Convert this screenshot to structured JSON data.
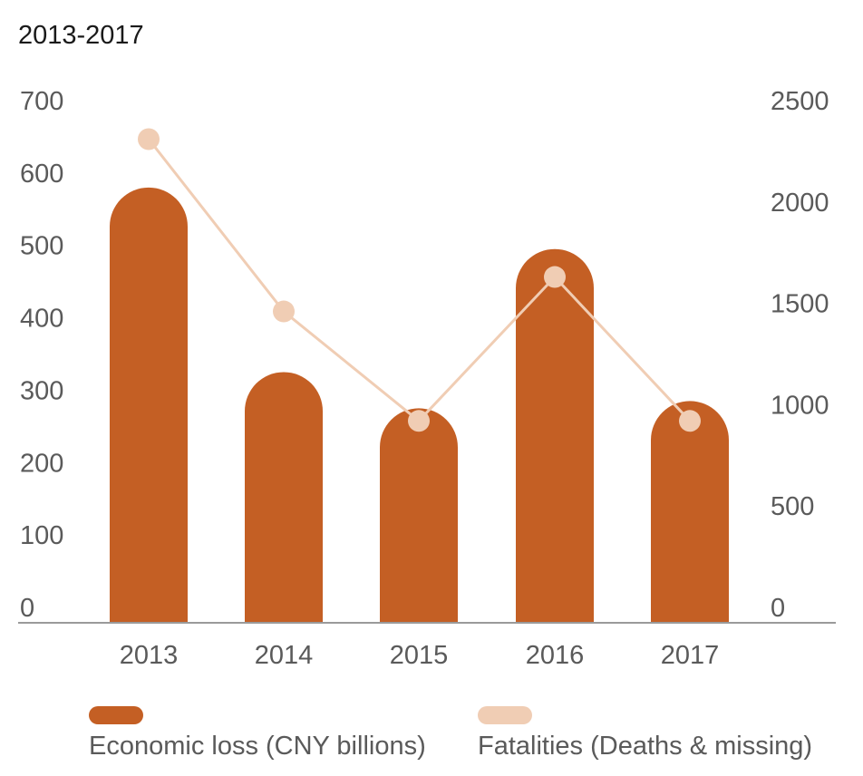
{
  "chart_data": {
    "type": "bar",
    "title": "2013-2017",
    "categories": [
      "2013",
      "2014",
      "2015",
      "2016",
      "2017"
    ],
    "series": [
      {
        "name": "Economic loss (CNY billions)",
        "type": "bar",
        "axis": "left",
        "color": "#c45f24",
        "values": [
          580,
          325,
          275,
          495,
          285
        ]
      },
      {
        "name": "Fatalities (Deaths & missing)",
        "type": "line",
        "axis": "right",
        "color": "#f0cdb4",
        "values": [
          2310,
          1460,
          920,
          1630,
          920
        ]
      }
    ],
    "y_left": {
      "range": [
        0,
        700
      ],
      "ticks": [
        "0",
        "100",
        "200",
        "300",
        "400",
        "500",
        "600",
        "700"
      ]
    },
    "y_right": {
      "range": [
        0,
        2500
      ],
      "ticks": [
        "0",
        "500",
        "1000",
        "1500",
        "2000",
        "2500"
      ]
    },
    "grid": false,
    "legend_position": "bottom-left",
    "axis_line_color": "#9a9a9a"
  }
}
